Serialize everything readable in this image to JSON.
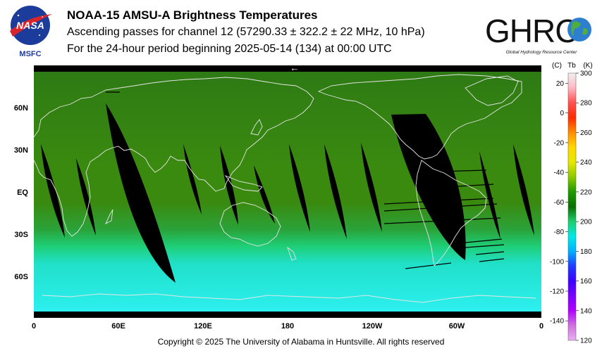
{
  "header": {
    "title": "NOAA-15 AMSU-A Brightness Temperatures",
    "subtitle_pass": "Ascending passes for channel 12 (57290.33 ± 322.2 ± 22 MHz, 10 hPa)",
    "subtitle_period": "For the 24-hour period beginning 2025-05-14 (134) at 00:00 UTC"
  },
  "logos": {
    "nasa_text": "NASA",
    "msfc_text": "MSFC",
    "ghrc_text": "GHRC",
    "ghrc_caption": "Global Hydrology Resource Center"
  },
  "map": {
    "lat_labels": [
      "60N",
      "30N",
      "EQ",
      "30S",
      "60S"
    ],
    "lon_labels": [
      "0",
      "60E",
      "120E",
      "180",
      "120W",
      "60W",
      "0"
    ],
    "arrow_glyph": "←",
    "colors": {
      "tropics": "#3a8a10",
      "midlat": "#2c7a12",
      "southern_band": "#1ee0c8",
      "polar_south": "#28f0f0",
      "no_data": "#000000",
      "coastline": "#e6e6e6"
    }
  },
  "colorbar": {
    "header_c": "(C)",
    "header_tb": "Tb",
    "header_k": "(K)",
    "celsius_ticks": [
      "20",
      "0",
      "-20",
      "-40",
      "-60",
      "-80",
      "-100",
      "-120",
      "-140"
    ],
    "kelvin_ticks": [
      "300",
      "280",
      "260",
      "240",
      "220",
      "200",
      "180",
      "160",
      "140",
      "120"
    ],
    "range_k": [
      120,
      300
    ],
    "colors_top_to_bottom": [
      "#f0f0f0",
      "#ffb6c1",
      "#ff5050",
      "#ff2a00",
      "#ff8c00",
      "#ffd700",
      "#e8e800",
      "#8dc800",
      "#1e9a00",
      "#0a6e00",
      "#1ecf6e",
      "#00e8e8",
      "#00b0ff",
      "#1e3cff",
      "#3c00ff",
      "#7a00ff",
      "#b000ff",
      "#d070e0",
      "#e8b0f0"
    ]
  },
  "footer": {
    "copyright": "Copyright © 2025 The University of Alabama in Huntsville.  All rights reserved"
  }
}
